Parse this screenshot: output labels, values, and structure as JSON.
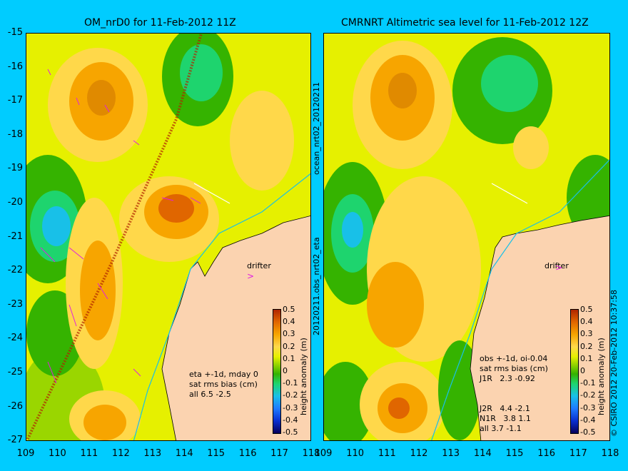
{
  "left_panel": {
    "title": "OM_nrD0 for 11-Feb-2012 11Z",
    "side_label": "ocean_nrt02_20120211",
    "stats": [
      "eta +-1d, mday 0",
      "sat rms bias (cm)",
      "all 6.5 -2.5"
    ],
    "drifter_label": "drifter",
    "colorbar_label": "height anomaly (m)"
  },
  "right_panel": {
    "title": "CMRNRT Altimetric sea level  for 11-Feb-2012 12Z",
    "side_label": "20120211.obs_nrt02_eta",
    "stats": [
      "obs +-1d, oi-0.04",
      "sat rms bias (cm)",
      "J1R   2.3 -0.92",
      "J2R   4.4 -2.1",
      "N1R   3.8 1.1",
      "all 3.7 -1.1"
    ],
    "drifter_label": "drifter",
    "colorbar_label": "height anomaly (m)"
  },
  "y_ticks": [
    "-15",
    "-16",
    "-17",
    "-18",
    "-19",
    "-20",
    "-21",
    "-22",
    "-23",
    "-24",
    "-25",
    "-26",
    "-27"
  ],
  "x_ticks": [
    "109",
    "110",
    "111",
    "112",
    "113",
    "114",
    "115",
    "116",
    "117",
    "118"
  ],
  "colorbar_ticks": [
    "0.5",
    "0.4",
    "0.3",
    "0.2",
    "0.1",
    "0",
    "-0.1",
    "-0.2",
    "-0.3",
    "-0.4",
    "-0.5"
  ],
  "copyright": "© CSIRO 2012  20-Feb-2012 10:37:58",
  "colors": {
    "background": "#00ccff",
    "land": "#fbd3b0",
    "sea_base": "#e6f000"
  }
}
